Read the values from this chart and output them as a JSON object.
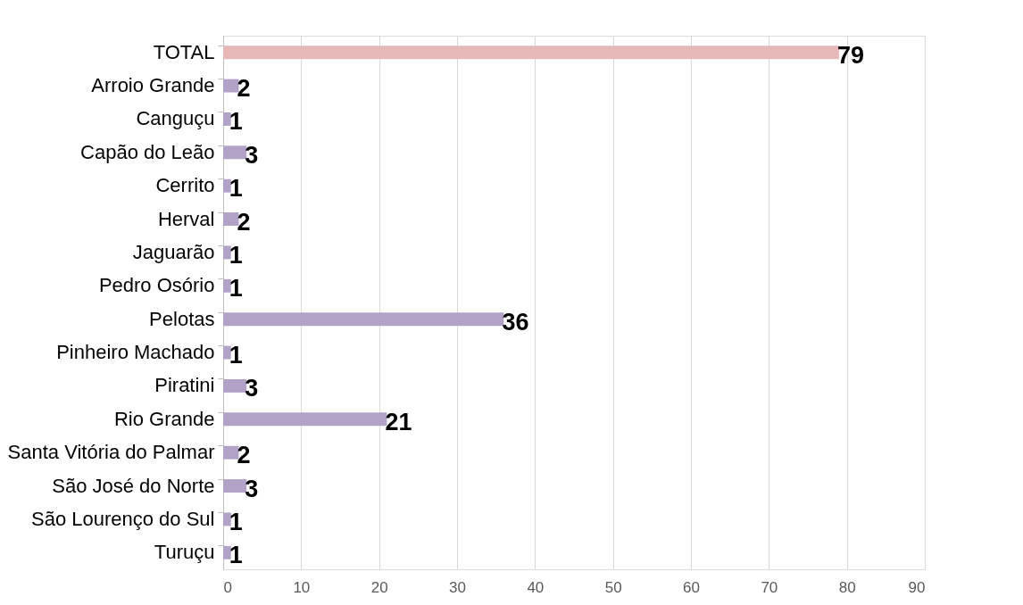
{
  "chart_data": {
    "type": "bar",
    "orientation": "horizontal",
    "categories": [
      "TOTAL",
      "Arroio Grande",
      "Canguçu",
      "Capão do Leão",
      "Cerrito",
      "Herval",
      "Jaguarão",
      "Pedro Osório",
      "Pelotas",
      "Pinheiro Machado",
      "Piratini",
      "Rio Grande ",
      "Santa Vitória do Palmar",
      "São José do Norte",
      "São Lourenço do Sul",
      "Turuçu"
    ],
    "values": [
      79,
      2,
      1,
      3,
      1,
      2,
      1,
      1,
      36,
      1,
      3,
      21,
      2,
      3,
      1,
      1
    ],
    "colors": [
      "#e6b8b7",
      "#b3a2c7",
      "#b3a2c7",
      "#b3a2c7",
      "#b3a2c7",
      "#b3a2c7",
      "#b3a2c7",
      "#b3a2c7",
      "#b3a2c7",
      "#b3a2c7",
      "#b3a2c7",
      "#b3a2c7",
      "#b3a2c7",
      "#b3a2c7",
      "#b3a2c7",
      "#b3a2c7"
    ],
    "xlim": [
      0,
      90
    ],
    "xticks": [
      0,
      10,
      20,
      30,
      40,
      50,
      60,
      70,
      80,
      90
    ],
    "grid": "x",
    "data_labels": true
  }
}
